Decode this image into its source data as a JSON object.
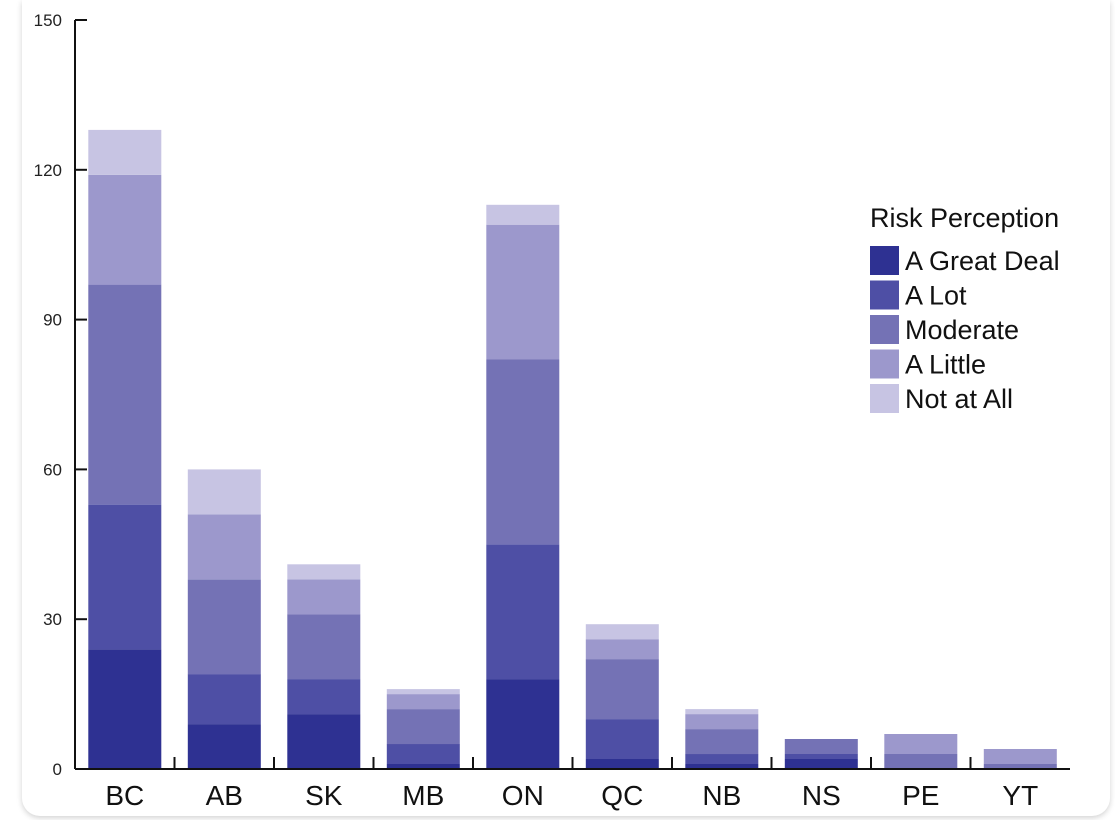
{
  "chart_data": {
    "type": "bar",
    "stacked": true,
    "categories": [
      "BC",
      "AB",
      "SK",
      "MB",
      "ON",
      "QC",
      "NB",
      "NS",
      "PE",
      "YT"
    ],
    "series": [
      {
        "name": "A Great Deal",
        "color": "#2e3192",
        "values": [
          24,
          9,
          11,
          1,
          18,
          2,
          1,
          2,
          0,
          0
        ]
      },
      {
        "name": "A Lot",
        "color": "#4e4fa5",
        "values": [
          29,
          10,
          7,
          4,
          27,
          8,
          2,
          1,
          0,
          0
        ]
      },
      {
        "name": "Moderate",
        "color": "#7472b5",
        "values": [
          44,
          19,
          13,
          7,
          37,
          12,
          5,
          3,
          3,
          1
        ]
      },
      {
        "name": "A Little",
        "color": "#9c98cc",
        "values": [
          22,
          13,
          7,
          3,
          27,
          4,
          3,
          0,
          4,
          3
        ]
      },
      {
        "name": "Not at All",
        "color": "#c7c4e3",
        "values": [
          9,
          9,
          3,
          1,
          4,
          3,
          1,
          0,
          0,
          0
        ]
      }
    ],
    "yticks": [
      0,
      30,
      60,
      90,
      120,
      150
    ],
    "ylim": [
      0,
      150
    ],
    "legend": {
      "title": "Risk Perception",
      "position": "right"
    },
    "grid": false
  }
}
